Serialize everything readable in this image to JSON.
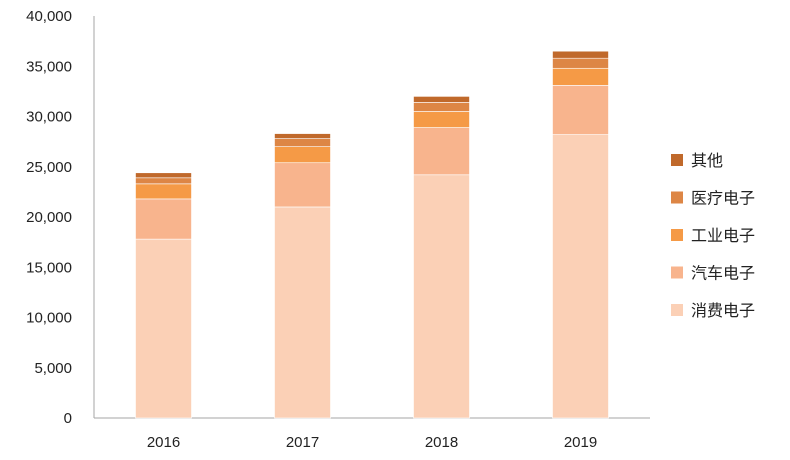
{
  "chart_data": {
    "type": "bar",
    "stacked": true,
    "categories": [
      "2016",
      "2017",
      "2018",
      "2019"
    ],
    "series": [
      {
        "name": "消费电子",
        "color": "#fbd0b6",
        "values": [
          17800,
          21000,
          24200,
          28200
        ]
      },
      {
        "name": "汽车电子",
        "color": "#f8b48d",
        "values": [
          4000,
          4400,
          4700,
          4900
        ]
      },
      {
        "name": "工业电子",
        "color": "#f59a46",
        "values": [
          1500,
          1600,
          1600,
          1700
        ]
      },
      {
        "name": "医疗电子",
        "color": "#dd8645",
        "values": [
          600,
          800,
          900,
          1000
        ]
      },
      {
        "name": "其他",
        "color": "#c0692b",
        "values": [
          500,
          500,
          600,
          700
        ]
      }
    ],
    "y_ticks": [
      "0",
      "5,000",
      "10,000",
      "15,000",
      "20,000",
      "25,000",
      "30,000",
      "35,000",
      "40,000"
    ],
    "ylim": [
      0,
      40000
    ],
    "legend_position": "right",
    "grid": false,
    "title": "",
    "xlabel": "",
    "ylabel": ""
  }
}
